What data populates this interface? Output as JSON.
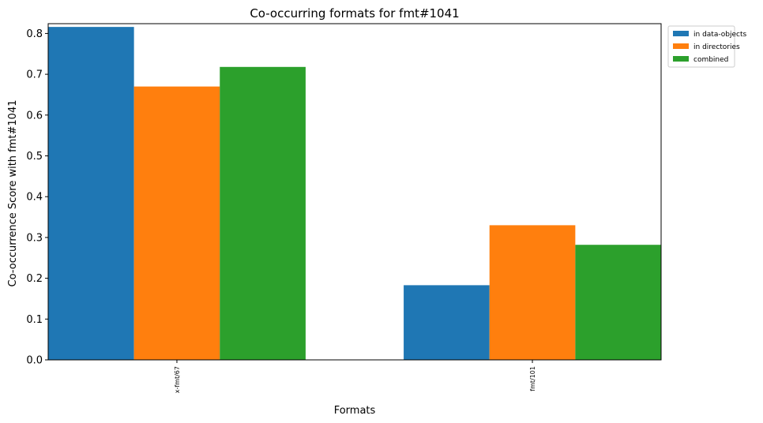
{
  "chart_data": {
    "type": "bar",
    "title": "Co-occurring formats for fmt#1041",
    "xlabel": "Formats",
    "ylabel": "Co-occurrence Score with fmt#1041",
    "categories": [
      "x-fmt/67",
      "fmt/101"
    ],
    "series": [
      {
        "name": "in data-objects",
        "values": [
          0.816,
          0.183
        ],
        "color": "#1f77b4"
      },
      {
        "name": "in directories",
        "values": [
          0.67,
          0.33
        ],
        "color": "#ff7f0e"
      },
      {
        "name": "combined",
        "values": [
          0.718,
          0.282
        ],
        "color": "#2ca02c"
      }
    ],
    "ylim": [
      0,
      0.824
    ],
    "yticks": [
      "0.0",
      "0.1",
      "0.2",
      "0.3",
      "0.4",
      "0.5",
      "0.6",
      "0.7",
      "0.8"
    ],
    "grid": false,
    "legend_position": "outside-top-right"
  }
}
